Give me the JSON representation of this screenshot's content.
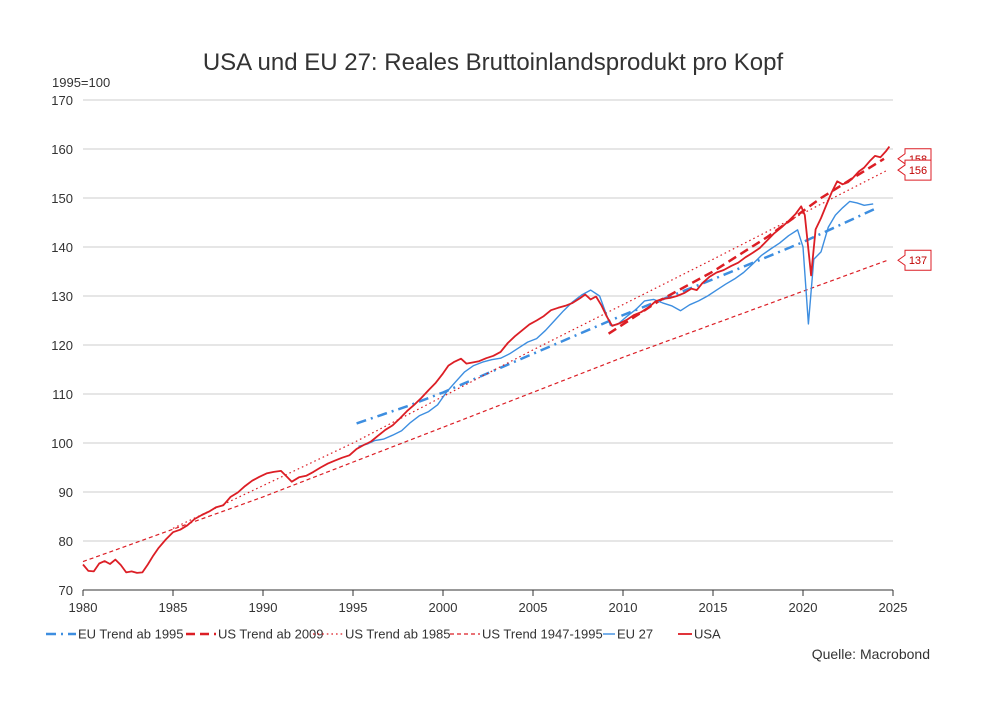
{
  "chart_data": {
    "type": "line",
    "title": "USA und EU 27: Reales Bruttoinlandsprodukt pro Kopf",
    "unit_label": "1995=100",
    "source": "Quelle: Macrobond",
    "xlim": [
      1980,
      2025
    ],
    "ylim": [
      70,
      170
    ],
    "x_ticks": [
      1980,
      1985,
      1990,
      1995,
      2000,
      2005,
      2010,
      2015,
      2020,
      2025
    ],
    "y_ticks": [
      70,
      80,
      90,
      100,
      110,
      120,
      130,
      140,
      150,
      160,
      170
    ],
    "grid": "horizontal",
    "legend_position": "bottom",
    "colors": {
      "eu": "#3d8ee0",
      "us": "#dc1e25",
      "grid": "#cccccc",
      "callout": "#dc1e25"
    },
    "series": [
      {
        "name": "EU Trend ab 1995",
        "color": "#3d8ee0",
        "style": "dash-dot",
        "width": 2.5,
        "points": [
          [
            1995.2,
            104
          ],
          [
            1998,
            107.5
          ],
          [
            2000,
            110.3
          ],
          [
            2005,
            118.2
          ],
          [
            2010,
            126.1
          ],
          [
            2015,
            133.4
          ],
          [
            2020,
            141
          ],
          [
            2024,
            147.8
          ]
        ]
      },
      {
        "name": "US Trend ab 2009",
        "color": "#dc1e25",
        "style": "dash",
        "width": 2.5,
        "points": [
          [
            2009.2,
            122.3
          ],
          [
            2012,
            129
          ],
          [
            2015,
            135
          ],
          [
            2018,
            142
          ],
          [
            2021,
            150
          ],
          [
            2024.5,
            158
          ]
        ]
      },
      {
        "name": "US Trend ab 1985",
        "color": "#dc1e25",
        "style": "dot",
        "width": 1.2,
        "points": [
          [
            1985,
            82.6
          ],
          [
            1995,
            100
          ],
          [
            2005,
            119
          ],
          [
            2015,
            137.5
          ],
          [
            2024.7,
            155.7
          ]
        ]
      },
      {
        "name": "US Trend 1947-1995",
        "color": "#dc1e25",
        "style": "dash-fine",
        "width": 1.2,
        "points": [
          [
            1980,
            75.8
          ],
          [
            1990,
            89
          ],
          [
            2000,
            103.2
          ],
          [
            2010,
            117.5
          ],
          [
            2024.7,
            137.3
          ]
        ]
      },
      {
        "name": "EU 27",
        "color": "#3d8ee0",
        "style": "solid",
        "width": 1.4,
        "points": [
          [
            1995.3,
            99.3
          ],
          [
            1995.8,
            99.8
          ],
          [
            1996.2,
            100.5
          ],
          [
            1996.7,
            100.8
          ],
          [
            1997.2,
            101.6
          ],
          [
            1997.7,
            102.5
          ],
          [
            1998.2,
            104.2
          ],
          [
            1998.7,
            105.6
          ],
          [
            1999.2,
            106.4
          ],
          [
            1999.7,
            107.8
          ],
          [
            2000.2,
            110.4
          ],
          [
            2000.7,
            112.5
          ],
          [
            2001.2,
            114.5
          ],
          [
            2001.7,
            115.8
          ],
          [
            2002.2,
            116.5
          ],
          [
            2002.7,
            117
          ],
          [
            2003.2,
            117.3
          ],
          [
            2003.7,
            118.2
          ],
          [
            2004.2,
            119.4
          ],
          [
            2004.7,
            120.6
          ],
          [
            2005.2,
            121.3
          ],
          [
            2005.7,
            123
          ],
          [
            2006.2,
            125
          ],
          [
            2006.7,
            127
          ],
          [
            2007.2,
            128.8
          ],
          [
            2007.7,
            130.2
          ],
          [
            2008.2,
            131.2
          ],
          [
            2008.7,
            130
          ],
          [
            2009.0,
            127
          ],
          [
            2009.3,
            124
          ],
          [
            2009.7,
            124.2
          ],
          [
            2010.2,
            125.8
          ],
          [
            2010.7,
            127.2
          ],
          [
            2011.2,
            129
          ],
          [
            2011.7,
            129.3
          ],
          [
            2012.2,
            128.6
          ],
          [
            2012.7,
            128
          ],
          [
            2013.2,
            127
          ],
          [
            2013.7,
            128.2
          ],
          [
            2014.2,
            129
          ],
          [
            2014.7,
            130
          ],
          [
            2015.2,
            131.2
          ],
          [
            2015.7,
            132.4
          ],
          [
            2016.2,
            133.5
          ],
          [
            2016.7,
            134.8
          ],
          [
            2017.2,
            136.5
          ],
          [
            2017.7,
            138.3
          ],
          [
            2018.2,
            139.6
          ],
          [
            2018.7,
            140.8
          ],
          [
            2019.2,
            142.3
          ],
          [
            2019.7,
            143.5
          ],
          [
            2020.0,
            140
          ],
          [
            2020.3,
            124.3
          ],
          [
            2020.6,
            137.5
          ],
          [
            2021.0,
            139
          ],
          [
            2021.4,
            144
          ],
          [
            2021.8,
            146.5
          ],
          [
            2022.2,
            148
          ],
          [
            2022.6,
            149.3
          ],
          [
            2023.0,
            149
          ],
          [
            2023.4,
            148.5
          ],
          [
            2023.9,
            148.8
          ]
        ]
      },
      {
        "name": "USA",
        "color": "#dc1e25",
        "style": "solid",
        "width": 1.8,
        "points": [
          [
            1980.0,
            75.2
          ],
          [
            1980.3,
            73.9
          ],
          [
            1980.6,
            73.8
          ],
          [
            1980.9,
            75.4
          ],
          [
            1981.2,
            75.9
          ],
          [
            1981.5,
            75.3
          ],
          [
            1981.8,
            76.2
          ],
          [
            1982.1,
            75.1
          ],
          [
            1982.4,
            73.6
          ],
          [
            1982.7,
            73.8
          ],
          [
            1983.0,
            73.5
          ],
          [
            1983.3,
            73.6
          ],
          [
            1983.6,
            75.2
          ],
          [
            1983.9,
            77
          ],
          [
            1984.2,
            78.6
          ],
          [
            1984.6,
            80.3
          ],
          [
            1985.0,
            81.8
          ],
          [
            1985.4,
            82.3
          ],
          [
            1985.8,
            83.2
          ],
          [
            1986.2,
            84.5
          ],
          [
            1986.6,
            85.3
          ],
          [
            1987.0,
            86
          ],
          [
            1987.4,
            86.9
          ],
          [
            1987.8,
            87.3
          ],
          [
            1988.2,
            89
          ],
          [
            1988.6,
            89.9
          ],
          [
            1989.0,
            91.2
          ],
          [
            1989.4,
            92.3
          ],
          [
            1989.8,
            93.1
          ],
          [
            1990.2,
            93.8
          ],
          [
            1990.6,
            94.1
          ],
          [
            1991.0,
            94.3
          ],
          [
            1991.3,
            93.2
          ],
          [
            1991.6,
            92.1
          ],
          [
            1992.0,
            93
          ],
          [
            1992.4,
            93.3
          ],
          [
            1992.8,
            94.1
          ],
          [
            1993.2,
            95
          ],
          [
            1993.6,
            95.8
          ],
          [
            1994.0,
            96.4
          ],
          [
            1994.4,
            97
          ],
          [
            1994.8,
            97.5
          ],
          [
            1995.2,
            98.8
          ],
          [
            1995.6,
            99.6
          ],
          [
            1996.0,
            100.3
          ],
          [
            1996.4,
            101.5
          ],
          [
            1996.8,
            102.7
          ],
          [
            1997.2,
            103.6
          ],
          [
            1997.6,
            105
          ],
          [
            1998.0,
            106.5
          ],
          [
            1998.4,
            107.8
          ],
          [
            1998.8,
            109.2
          ],
          [
            1999.2,
            110.8
          ],
          [
            1999.6,
            112.3
          ],
          [
            2000.0,
            114.2
          ],
          [
            2000.3,
            115.8
          ],
          [
            2000.6,
            116.5
          ],
          [
            2001.0,
            117.2
          ],
          [
            2001.3,
            116.2
          ],
          [
            2001.6,
            116.4
          ],
          [
            2002.0,
            116.7
          ],
          [
            2002.4,
            117.3
          ],
          [
            2002.8,
            117.8
          ],
          [
            2003.2,
            118.6
          ],
          [
            2003.6,
            120.4
          ],
          [
            2004.0,
            121.8
          ],
          [
            2004.4,
            123
          ],
          [
            2004.8,
            124.2
          ],
          [
            2005.2,
            125
          ],
          [
            2005.6,
            125.9
          ],
          [
            2006.0,
            127.1
          ],
          [
            2006.4,
            127.6
          ],
          [
            2006.8,
            128
          ],
          [
            2007.2,
            128.6
          ],
          [
            2007.6,
            129.5
          ],
          [
            2007.9,
            130.3
          ],
          [
            2008.2,
            129.3
          ],
          [
            2008.5,
            129.9
          ],
          [
            2008.8,
            128.1
          ],
          [
            2009.1,
            125.8
          ],
          [
            2009.4,
            123.9
          ],
          [
            2009.8,
            124.4
          ],
          [
            2010.2,
            125.1
          ],
          [
            2010.6,
            126.1
          ],
          [
            2011.0,
            126.7
          ],
          [
            2011.4,
            127.6
          ],
          [
            2011.8,
            128.9
          ],
          [
            2012.2,
            129.4
          ],
          [
            2012.6,
            129.6
          ],
          [
            2013.0,
            130
          ],
          [
            2013.4,
            130.6
          ],
          [
            2013.8,
            131.5
          ],
          [
            2014.1,
            131.2
          ],
          [
            2014.4,
            132.6
          ],
          [
            2014.8,
            133.9
          ],
          [
            2015.2,
            134.8
          ],
          [
            2015.6,
            135.3
          ],
          [
            2016.0,
            136.1
          ],
          [
            2016.4,
            136.8
          ],
          [
            2016.8,
            137.9
          ],
          [
            2017.2,
            138.8
          ],
          [
            2017.6,
            139.8
          ],
          [
            2018.0,
            141.3
          ],
          [
            2018.4,
            142.8
          ],
          [
            2018.8,
            144
          ],
          [
            2019.2,
            145.3
          ],
          [
            2019.6,
            146.8
          ],
          [
            2019.9,
            148.3
          ],
          [
            2020.1,
            146.5
          ],
          [
            2020.3,
            139.5
          ],
          [
            2020.45,
            134.2
          ],
          [
            2020.7,
            143.6
          ],
          [
            2021.0,
            145.9
          ],
          [
            2021.3,
            148.6
          ],
          [
            2021.6,
            151.2
          ],
          [
            2021.9,
            153.4
          ],
          [
            2022.2,
            152.8
          ],
          [
            2022.5,
            153.2
          ],
          [
            2022.8,
            154.2
          ],
          [
            2023.1,
            155.4
          ],
          [
            2023.4,
            156.2
          ],
          [
            2023.7,
            157.5
          ],
          [
            2024.0,
            158.6
          ],
          [
            2024.3,
            158.3
          ],
          [
            2024.6,
            159.5
          ],
          [
            2024.8,
            160.5
          ]
        ]
      }
    ],
    "annotations": [
      {
        "label": "158",
        "value": 158
      },
      {
        "label": "156",
        "value": 155.7
      },
      {
        "label": "137",
        "value": 137.3
      }
    ]
  }
}
